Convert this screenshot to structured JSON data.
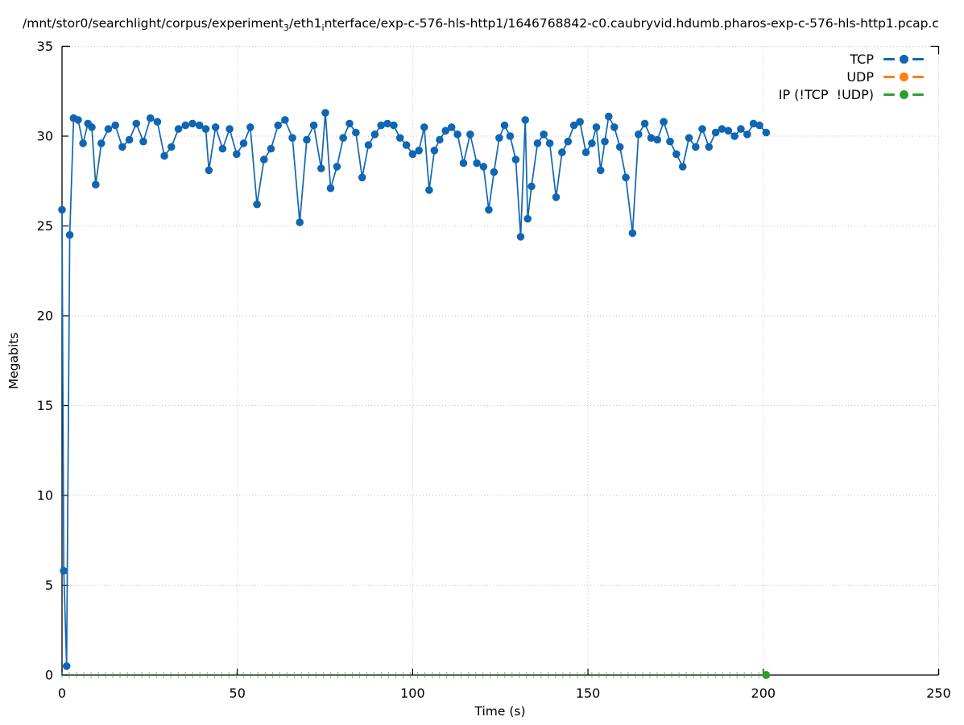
{
  "title": {
    "segments": [
      {
        "text": "/mnt/stor0/searchlight/corpus/experiment"
      },
      {
        "text": "3",
        "sub": true
      },
      {
        "text": "/eth1"
      },
      {
        "text": "i",
        "sub": true
      },
      {
        "text": "nterface/exp-c-576-hls-http1/1646768842-c0.caubryvid.hdumb.pharos-exp-c-576-hls-http1.pcap.c"
      }
    ]
  },
  "chart_data": {
    "type": "line",
    "style": "linespoints (gnuplot-like), dotted major grid",
    "xlabel": "Time (s)",
    "ylabel": "Megabits",
    "xlim": [
      0,
      250
    ],
    "ylim": [
      0,
      35
    ],
    "x_ticks": [
      0,
      50,
      100,
      150,
      200,
      250
    ],
    "y_ticks": [
      0,
      5,
      10,
      15,
      20,
      25,
      30,
      35
    ],
    "grid": "dotted gray at major ticks",
    "legend": [
      {
        "label": "TCP",
        "color": "#1066b2"
      },
      {
        "label": "UDP",
        "color": "#ff7f0e"
      },
      {
        "label": "IP (!TCP  !UDP)",
        "color": "#2ca02c"
      }
    ],
    "legend_position": "top-right inside, text left of line-dot-line sample",
    "series": [
      {
        "name": "TCP",
        "color": "#1066b2",
        "marker": "filled-circle",
        "points": [
          [
            0,
            25.9
          ],
          [
            0.5,
            5.8
          ],
          [
            1.3,
            0.5
          ],
          [
            2.2,
            24.5
          ],
          [
            3.3,
            31.0
          ],
          [
            4.6,
            30.9
          ],
          [
            6.0,
            29.6
          ],
          [
            7.4,
            30.7
          ],
          [
            8.5,
            30.5
          ],
          [
            9.6,
            27.3
          ],
          [
            11.2,
            29.6
          ],
          [
            13.2,
            30.4
          ],
          [
            15.2,
            30.6
          ],
          [
            17.2,
            29.4
          ],
          [
            19.2,
            29.8
          ],
          [
            21.2,
            30.7
          ],
          [
            23.2,
            29.7
          ],
          [
            25.2,
            31.0
          ],
          [
            27.2,
            30.8
          ],
          [
            29.2,
            28.9
          ],
          [
            31.2,
            29.4
          ],
          [
            33.2,
            30.4
          ],
          [
            35.2,
            30.6
          ],
          [
            37.2,
            30.7
          ],
          [
            39.2,
            30.6
          ],
          [
            41.0,
            30.4
          ],
          [
            41.9,
            28.1
          ],
          [
            43.8,
            30.5
          ],
          [
            45.8,
            29.3
          ],
          [
            47.8,
            30.4
          ],
          [
            49.8,
            29.0
          ],
          [
            51.8,
            29.6
          ],
          [
            53.7,
            30.5
          ],
          [
            55.6,
            26.2
          ],
          [
            57.6,
            28.7
          ],
          [
            59.6,
            29.3
          ],
          [
            61.6,
            30.6
          ],
          [
            63.6,
            30.9
          ],
          [
            65.7,
            29.9
          ],
          [
            67.8,
            25.2
          ],
          [
            69.8,
            29.8
          ],
          [
            71.8,
            30.6
          ],
          [
            73.9,
            28.2
          ],
          [
            75.1,
            31.3
          ],
          [
            76.6,
            27.1
          ],
          [
            78.4,
            28.3
          ],
          [
            80.2,
            29.9
          ],
          [
            82.0,
            30.7
          ],
          [
            83.8,
            30.2
          ],
          [
            85.6,
            27.7
          ],
          [
            87.4,
            29.5
          ],
          [
            89.2,
            30.1
          ],
          [
            91.0,
            30.6
          ],
          [
            92.8,
            30.7
          ],
          [
            94.6,
            30.6
          ],
          [
            96.4,
            29.9
          ],
          [
            98.2,
            29.5
          ],
          [
            100.0,
            29.0
          ],
          [
            101.8,
            29.2
          ],
          [
            103.3,
            30.5
          ],
          [
            104.7,
            27.0
          ],
          [
            106.2,
            29.2
          ],
          [
            107.7,
            29.8
          ],
          [
            109.4,
            30.3
          ],
          [
            111.1,
            30.5
          ],
          [
            112.8,
            30.1
          ],
          [
            114.5,
            28.5
          ],
          [
            116.4,
            30.1
          ],
          [
            118.3,
            28.5
          ],
          [
            120.2,
            28.3
          ],
          [
            121.7,
            25.9
          ],
          [
            123.2,
            28.0
          ],
          [
            124.7,
            29.9
          ],
          [
            126.2,
            30.6
          ],
          [
            127.8,
            30.0
          ],
          [
            129.4,
            28.7
          ],
          [
            130.8,
            24.4
          ],
          [
            132.1,
            30.9
          ],
          [
            132.8,
            25.4
          ],
          [
            133.9,
            27.2
          ],
          [
            135.6,
            29.6
          ],
          [
            137.4,
            30.1
          ],
          [
            139.1,
            29.6
          ],
          [
            140.9,
            26.6
          ],
          [
            142.6,
            29.1
          ],
          [
            144.3,
            29.7
          ],
          [
            146.0,
            30.6
          ],
          [
            147.7,
            30.8
          ],
          [
            149.4,
            29.1
          ],
          [
            151.1,
            29.6
          ],
          [
            152.4,
            30.5
          ],
          [
            153.6,
            28.1
          ],
          [
            154.8,
            29.7
          ],
          [
            155.9,
            31.1
          ],
          [
            157.5,
            30.5
          ],
          [
            159.1,
            29.4
          ],
          [
            160.8,
            27.7
          ],
          [
            162.7,
            24.6
          ],
          [
            164.4,
            30.1
          ],
          [
            166.2,
            30.7
          ],
          [
            168.0,
            29.9
          ],
          [
            169.8,
            29.8
          ],
          [
            171.6,
            30.8
          ],
          [
            173.4,
            29.7
          ],
          [
            175.2,
            29.0
          ],
          [
            177.0,
            28.3
          ],
          [
            178.8,
            29.9
          ],
          [
            180.7,
            29.4
          ],
          [
            182.6,
            30.4
          ],
          [
            184.5,
            29.4
          ],
          [
            186.4,
            30.2
          ],
          [
            188.2,
            30.4
          ],
          [
            190.0,
            30.3
          ],
          [
            191.8,
            30.0
          ],
          [
            193.6,
            30.4
          ],
          [
            195.4,
            30.1
          ],
          [
            197.2,
            30.7
          ],
          [
            198.9,
            30.6
          ],
          [
            200.8,
            30.2
          ]
        ]
      },
      {
        "name": "UDP",
        "color": "#ff7f0e",
        "marker": "filled-circle",
        "points": []
      },
      {
        "name": "IP (!TCP  !UDP)",
        "color": "#2ca02c",
        "marker": "filled-circle",
        "zero_line_marks": {
          "t_start": 0,
          "t_end": 198.9,
          "t_step": 2.07,
          "y": 0
        },
        "points": [
          [
            200.8,
            0
          ]
        ]
      }
    ]
  }
}
